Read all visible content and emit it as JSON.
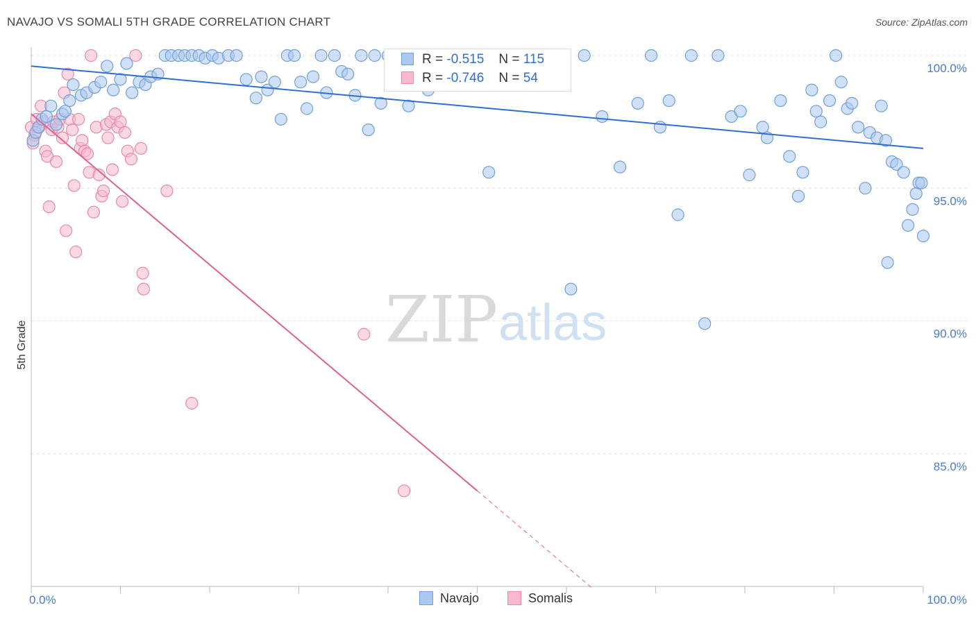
{
  "title": "NAVAJO VS SOMALI 5TH GRADE CORRELATION CHART",
  "source": "Source: ZipAtlas.com",
  "watermark": {
    "zip": "ZIP",
    "atlas": "atlas"
  },
  "legend": {
    "rows": [
      {
        "r_label": "R =",
        "r_value": "-0.515",
        "n_label": "N =",
        "n_value": "115"
      },
      {
        "r_label": "R =",
        "r_value": "-0.746",
        "n_label": "N =",
        "n_value": "54"
      }
    ]
  },
  "colors": {
    "navajo_fill": "#aac8f0",
    "navajo_stroke": "#6f9fd8",
    "navajo_line": "#2e6ed1",
    "somali_fill": "#f6b8cc",
    "somali_stroke": "#e888a8",
    "somali_line": "#e06090",
    "grid": "#e3e3e3",
    "tick_label": "#4a7cc9"
  },
  "chart_data": {
    "type": "scatter",
    "title": "NAVAJO VS SOMALI 5TH GRADE CORRELATION CHART",
    "xlabel": "",
    "ylabel": "5th Grade",
    "xlim": [
      0,
      100
    ],
    "ylim": [
      80,
      100.8
    ],
    "x_tick_labels": [
      "0.0%",
      "100.0%"
    ],
    "y_ticks": [
      85,
      90,
      95,
      100
    ],
    "y_tick_labels": [
      "85.0%",
      "90.0%",
      "95.0%",
      "100.0%"
    ],
    "grid": true,
    "legend_placement": "bottom-center",
    "series": [
      {
        "name": "Navajo",
        "trend": {
          "x": [
            0,
            100
          ],
          "y": [
            99.6,
            96.5
          ],
          "solid_to": 100
        },
        "points": [
          [
            0.2,
            96.8
          ],
          [
            0.5,
            97.1
          ],
          [
            0.8,
            97.3
          ],
          [
            1.2,
            97.6
          ],
          [
            1.7,
            97.7
          ],
          [
            2.2,
            98.1
          ],
          [
            2.8,
            97.4
          ],
          [
            3.5,
            97.8
          ],
          [
            4.3,
            98.3
          ],
          [
            3.8,
            97.9
          ],
          [
            4.7,
            98.9
          ],
          [
            5.6,
            98.5
          ],
          [
            6.2,
            98.6
          ],
          [
            7.1,
            98.8
          ],
          [
            7.8,
            99.0
          ],
          [
            8.5,
            99.6
          ],
          [
            9.2,
            98.7
          ],
          [
            10.0,
            99.1
          ],
          [
            10.7,
            99.7
          ],
          [
            11.3,
            98.6
          ],
          [
            12.1,
            99.0
          ],
          [
            12.8,
            98.9
          ],
          [
            13.4,
            99.2
          ],
          [
            14.2,
            99.3
          ],
          [
            15.0,
            100.0
          ],
          [
            15.7,
            100.0
          ],
          [
            16.5,
            100.0
          ],
          [
            17.2,
            100.0
          ],
          [
            18.0,
            100.0
          ],
          [
            18.8,
            100.0
          ],
          [
            19.5,
            99.9
          ],
          [
            20.3,
            100.0
          ],
          [
            21.0,
            99.9
          ],
          [
            22.1,
            100.0
          ],
          [
            23.0,
            100.0
          ],
          [
            24.1,
            99.1
          ],
          [
            25.2,
            98.4
          ],
          [
            25.8,
            99.2
          ],
          [
            26.5,
            98.7
          ],
          [
            27.3,
            99.0
          ],
          [
            28.0,
            97.6
          ],
          [
            28.7,
            100.0
          ],
          [
            29.5,
            100.0
          ],
          [
            30.2,
            99.0
          ],
          [
            30.9,
            98.0
          ],
          [
            31.6,
            99.2
          ],
          [
            32.5,
            100.0
          ],
          [
            33.1,
            98.6
          ],
          [
            34.0,
            100.0
          ],
          [
            34.8,
            99.4
          ],
          [
            35.5,
            99.3
          ],
          [
            36.3,
            98.5
          ],
          [
            37.0,
            100.0
          ],
          [
            37.8,
            97.2
          ],
          [
            38.5,
            100.0
          ],
          [
            39.2,
            98.2
          ],
          [
            40.0,
            100.0
          ],
          [
            40.7,
            100.0
          ],
          [
            41.5,
            100.0
          ],
          [
            42.3,
            98.1
          ],
          [
            43.0,
            98.9
          ],
          [
            43.7,
            100.0
          ],
          [
            44.5,
            98.7
          ],
          [
            45.2,
            100.0
          ],
          [
            46.0,
            100.0
          ],
          [
            47.2,
            100.0
          ],
          [
            48.0,
            99.4
          ],
          [
            49.0,
            100.0
          ],
          [
            50.5,
            100.0
          ],
          [
            51.3,
            95.6
          ],
          [
            53.0,
            100.0
          ],
          [
            54.2,
            100.0
          ],
          [
            55.5,
            100.0
          ],
          [
            56.8,
            100.0
          ],
          [
            58.0,
            100.0
          ],
          [
            59.0,
            100.0
          ],
          [
            60.5,
            91.2
          ],
          [
            62.0,
            100.0
          ],
          [
            64.0,
            97.7
          ],
          [
            66.0,
            95.8
          ],
          [
            68.0,
            98.2
          ],
          [
            69.5,
            100.0
          ],
          [
            70.5,
            97.3
          ],
          [
            71.5,
            98.3
          ],
          [
            72.5,
            94.0
          ],
          [
            74.0,
            100.0
          ],
          [
            75.5,
            89.9
          ],
          [
            77.0,
            100.0
          ],
          [
            78.5,
            97.7
          ],
          [
            79.5,
            97.9
          ],
          [
            80.5,
            95.5
          ],
          [
            82.0,
            97.3
          ],
          [
            82.5,
            96.9
          ],
          [
            84.0,
            98.3
          ],
          [
            85.0,
            96.2
          ],
          [
            86.5,
            95.6
          ],
          [
            86.0,
            94.7
          ],
          [
            87.5,
            98.7
          ],
          [
            88.0,
            97.9
          ],
          [
            88.5,
            97.5
          ],
          [
            89.5,
            98.3
          ],
          [
            90.2,
            100.0
          ],
          [
            90.8,
            99.0
          ],
          [
            91.5,
            98.0
          ],
          [
            92.0,
            98.2
          ],
          [
            92.7,
            97.3
          ],
          [
            93.5,
            95.0
          ],
          [
            94.0,
            97.1
          ],
          [
            94.8,
            96.9
          ],
          [
            95.3,
            98.1
          ],
          [
            95.8,
            96.8
          ],
          [
            96.0,
            92.2
          ],
          [
            96.5,
            96.0
          ],
          [
            97.0,
            95.9
          ],
          [
            97.8,
            95.6
          ],
          [
            98.3,
            93.6
          ],
          [
            98.8,
            94.2
          ],
          [
            99.2,
            94.8
          ],
          [
            99.5,
            95.2
          ],
          [
            99.8,
            95.2
          ],
          [
            100.0,
            93.2
          ]
        ]
      },
      {
        "name": "Somalis",
        "trend": {
          "x": [
            0,
            50
          ],
          "y": [
            97.8,
            83.6
          ],
          "dashed_x": [
            50,
            63
          ],
          "dashed_y": [
            83.6,
            79.9
          ]
        },
        "points": [
          [
            0.0,
            97.3
          ],
          [
            0.2,
            96.7
          ],
          [
            0.4,
            97.0
          ],
          [
            0.6,
            97.6
          ],
          [
            0.9,
            97.3
          ],
          [
            1.1,
            98.1
          ],
          [
            1.4,
            97.5
          ],
          [
            1.6,
            96.4
          ],
          [
            1.8,
            96.2
          ],
          [
            2.0,
            94.3
          ],
          [
            2.3,
            97.2
          ],
          [
            2.5,
            97.5
          ],
          [
            2.8,
            96.0
          ],
          [
            3.0,
            97.3
          ],
          [
            3.2,
            97.6
          ],
          [
            3.5,
            96.9
          ],
          [
            3.7,
            98.6
          ],
          [
            3.9,
            93.4
          ],
          [
            4.1,
            99.3
          ],
          [
            4.3,
            97.6
          ],
          [
            4.6,
            97.2
          ],
          [
            4.8,
            95.1
          ],
          [
            5.0,
            92.6
          ],
          [
            5.3,
            97.6
          ],
          [
            5.5,
            96.5
          ],
          [
            5.7,
            96.8
          ],
          [
            6.0,
            96.4
          ],
          [
            6.3,
            96.3
          ],
          [
            6.5,
            95.6
          ],
          [
            6.7,
            100.0
          ],
          [
            7.0,
            94.1
          ],
          [
            7.3,
            97.3
          ],
          [
            7.6,
            95.5
          ],
          [
            7.9,
            94.7
          ],
          [
            8.1,
            94.9
          ],
          [
            8.4,
            97.4
          ],
          [
            8.6,
            96.9
          ],
          [
            8.9,
            97.5
          ],
          [
            9.1,
            95.7
          ],
          [
            9.4,
            97.8
          ],
          [
            9.7,
            97.3
          ],
          [
            10.0,
            97.5
          ],
          [
            10.2,
            94.5
          ],
          [
            10.5,
            97.1
          ],
          [
            10.8,
            96.4
          ],
          [
            11.2,
            96.1
          ],
          [
            11.7,
            100.0
          ],
          [
            12.3,
            96.5
          ],
          [
            12.5,
            91.8
          ],
          [
            12.6,
            91.2
          ],
          [
            15.2,
            94.9
          ],
          [
            18.0,
            86.9
          ],
          [
            37.3,
            89.5
          ],
          [
            41.8,
            83.6
          ]
        ]
      }
    ]
  },
  "bottom_legend": [
    "Navajo",
    "Somalis"
  ]
}
